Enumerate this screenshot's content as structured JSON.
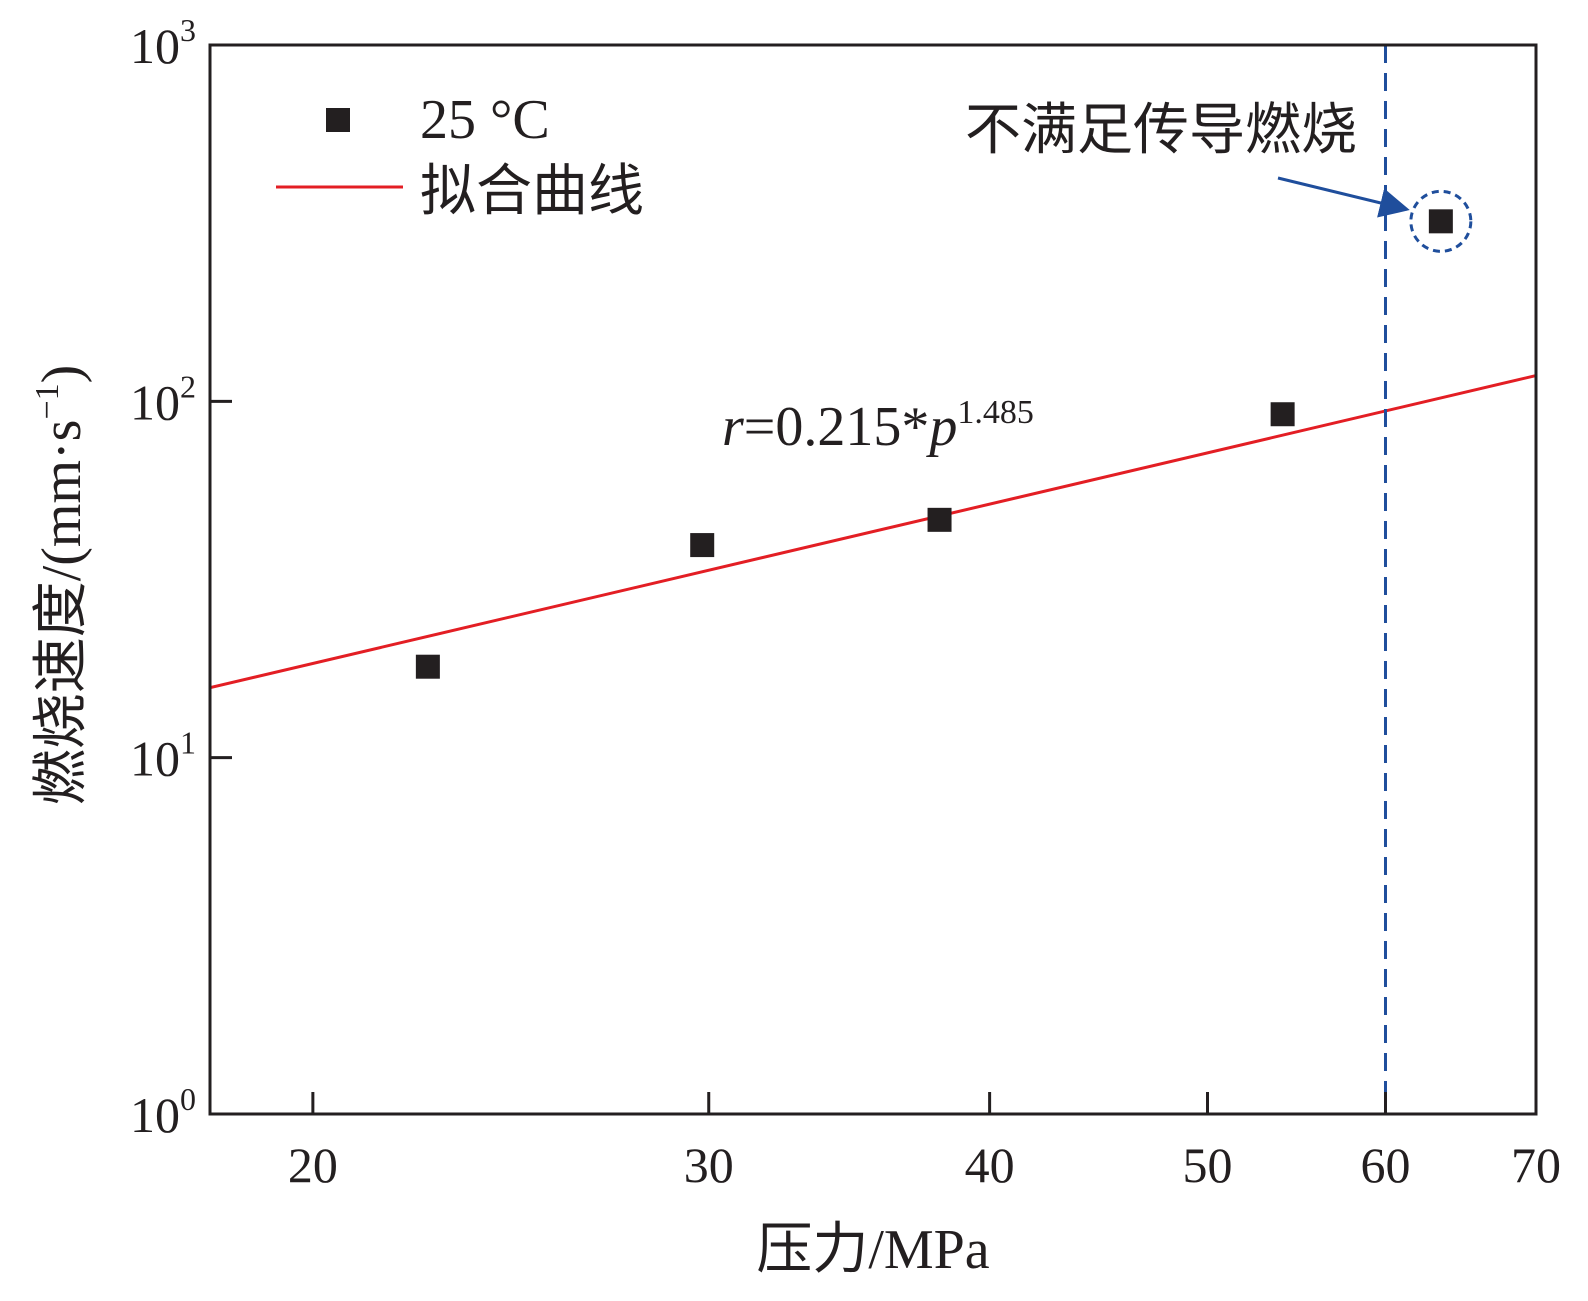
{
  "chart_data": {
    "type": "scatter",
    "x_scale": "log",
    "y_scale": "log",
    "xlabel": "压力/MPa",
    "ylabel": "燃烧速度/(mm·s",
    "ylabel_sup": "−1",
    "ylabel_end": ")",
    "xlim": [
      18,
      70
    ],
    "ylim": [
      1,
      1000
    ],
    "x_ticks": [
      20,
      30,
      40,
      50,
      60,
      70
    ],
    "y_ticks": [
      {
        "value": 1,
        "base": "10",
        "exp": "0"
      },
      {
        "value": 10,
        "base": "10",
        "exp": "1"
      },
      {
        "value": 100,
        "base": "10",
        "exp": "2"
      },
      {
        "value": 1000,
        "base": "10",
        "exp": "3"
      }
    ],
    "series": [
      {
        "name": "25 °C",
        "color": "#231f20",
        "marker": "square",
        "points": [
          {
            "x": 22.5,
            "y": 18
          },
          {
            "x": 29.8,
            "y": 39.5
          },
          {
            "x": 38.0,
            "y": 46.5
          },
          {
            "x": 54.0,
            "y": 92
          },
          {
            "x": 63.5,
            "y": 320
          }
        ]
      },
      {
        "name": "拟合曲线",
        "color": "#e31e24",
        "type": "line",
        "coef": 0.215,
        "exponent": 1.485
      }
    ],
    "equation": {
      "r": "r",
      "rest": "=0.215*",
      "p": "p",
      "exp": "1.485"
    },
    "reference_line": {
      "x": 60,
      "color": "#1f4e9c",
      "style": "dashed"
    },
    "annotation": {
      "text": "不满足传导燃烧",
      "target": {
        "x": 63.5,
        "y": 320
      },
      "color": "#1f4e9c"
    },
    "legend_placement": "top-left",
    "grid": false
  }
}
